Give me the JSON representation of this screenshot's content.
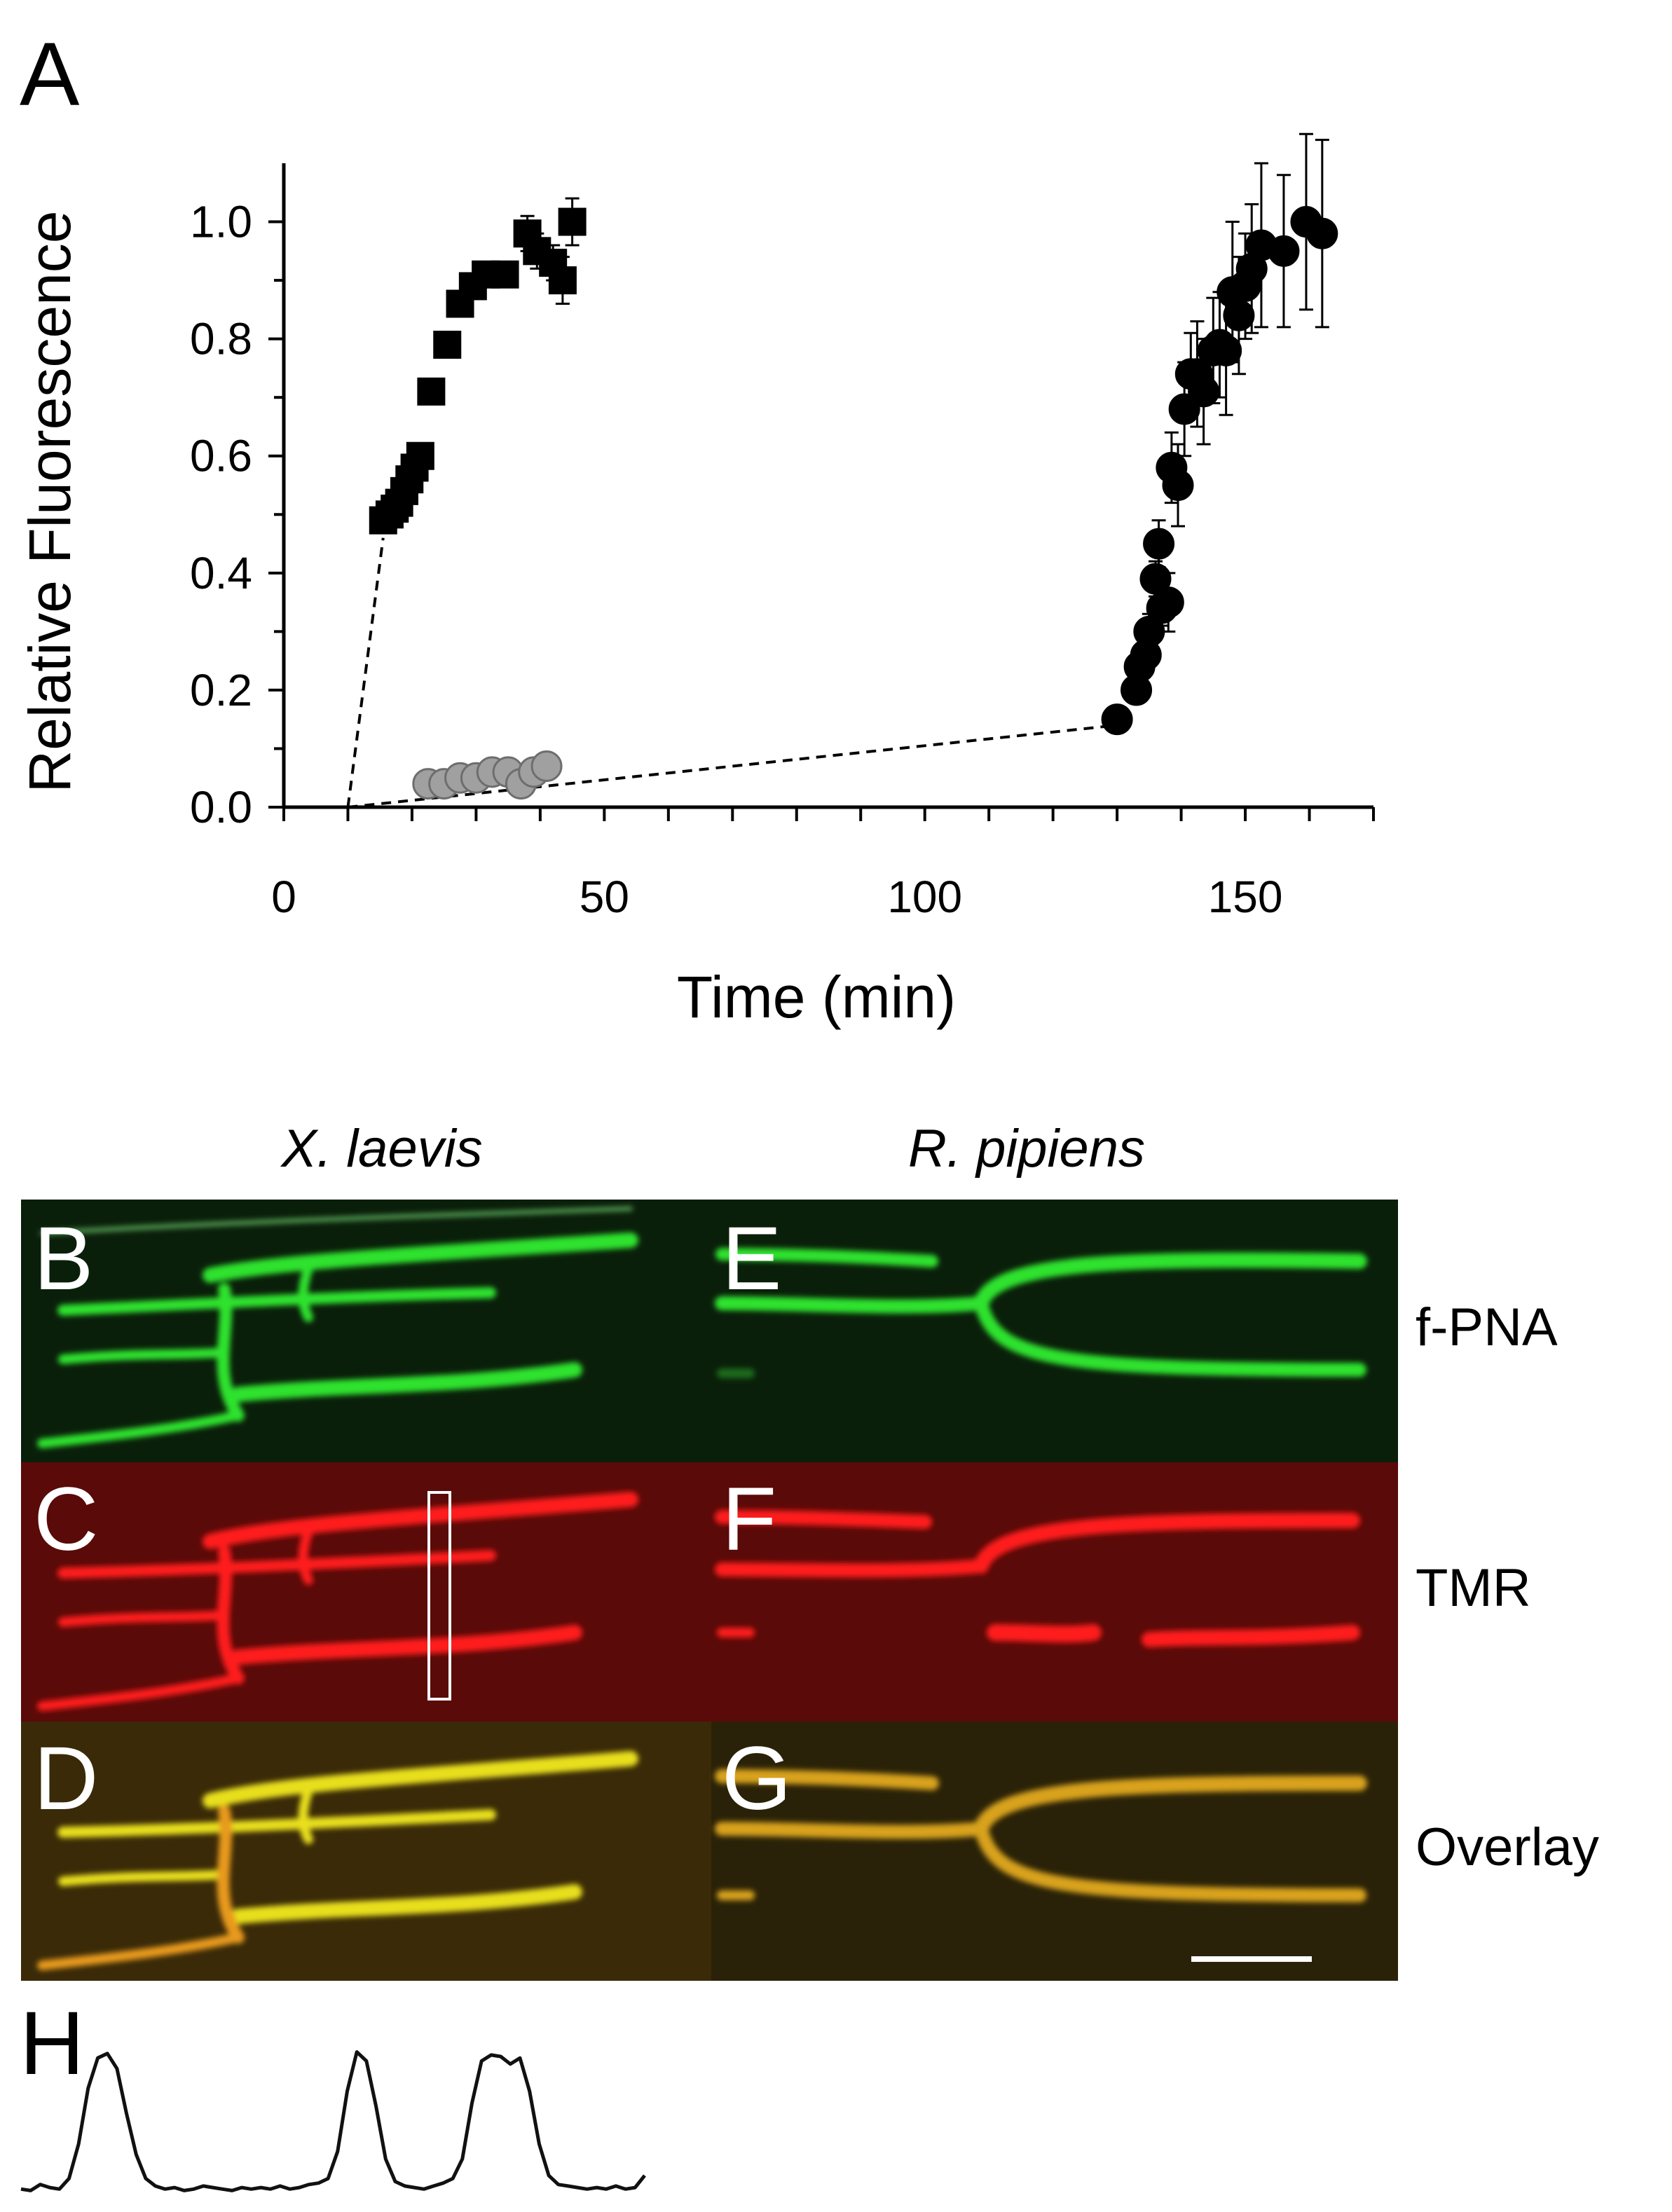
{
  "panels": {
    "A": "A",
    "B": "B",
    "C": "C",
    "D": "D",
    "E": "E",
    "F": "F",
    "G": "G",
    "H": "H"
  },
  "species": {
    "left": "X. laevis",
    "right": "R. pipiens"
  },
  "channels": [
    "f-PNA",
    "TMR",
    "Overlay"
  ],
  "colors": {
    "fpna_green": "#2fe22f",
    "tmr_red": "#ff1e1e",
    "overlay_yellow": "#e8df1c",
    "gray_markers": "#a0a0a0"
  },
  "chart_data": {
    "type": "scatter",
    "xlabel": "Time (min)",
    "ylabel": "Relative Fluorescence",
    "xlim": [
      0,
      170
    ],
    "ylim": [
      0,
      1.1
    ],
    "xticks": [
      "0",
      "50",
      "100",
      "150"
    ],
    "yticks": [
      "0.0",
      "0.2",
      "0.4",
      "0.6",
      "0.8",
      "1.0"
    ],
    "series": [
      {
        "marker": "square",
        "color": "#000000",
        "x": [
          15.5,
          16.5,
          17.3,
          18,
          18.8,
          19.6,
          20.4,
          21.3,
          23,
          25.5,
          27.5,
          29.5,
          31.5,
          34.5,
          38,
          39.5,
          42,
          43.5,
          45
        ],
        "y": [
          0.49,
          0.5,
          0.51,
          0.52,
          0.54,
          0.56,
          0.58,
          0.6,
          0.71,
          0.79,
          0.86,
          0.89,
          0.91,
          0.91,
          0.98,
          0.95,
          0.93,
          0.9,
          1.0
        ],
        "err": [
          0.01,
          0.01,
          0.01,
          0.02,
          0.02,
          0.02,
          0.02,
          0.02,
          0.02,
          0.02,
          0.02,
          0.02,
          0.02,
          0.01,
          0.03,
          0.03,
          0.03,
          0.04,
          0.04
        ]
      },
      {
        "marker": "circle",
        "color": "#a0a0a0",
        "x": [
          22.5,
          25,
          27.5,
          30,
          32.5,
          35,
          37,
          39,
          41
        ],
        "y": [
          0.04,
          0.04,
          0.05,
          0.05,
          0.06,
          0.06,
          0.04,
          0.06,
          0.07
        ],
        "err": []
      },
      {
        "marker": "circle",
        "color": "#000000",
        "x": [
          130,
          133,
          133.5,
          134.5,
          135,
          136,
          136.5,
          137,
          138,
          138.5,
          139.5,
          140.5,
          141.5,
          142.5,
          143.5,
          145,
          146,
          147,
          148,
          149,
          150,
          151,
          152.5,
          156,
          159.5,
          162
        ],
        "y": [
          0.15,
          0.2,
          0.24,
          0.26,
          0.3,
          0.39,
          0.45,
          0.34,
          0.35,
          0.58,
          0.55,
          0.68,
          0.74,
          0.74,
          0.71,
          0.78,
          0.79,
          0.78,
          0.88,
          0.84,
          0.89,
          0.92,
          0.96,
          0.95,
          1.0,
          0.98
        ],
        "err": [
          0.01,
          0.02,
          0.03,
          0.02,
          0.03,
          0.03,
          0.04,
          0.03,
          0.05,
          0.06,
          0.07,
          0.08,
          0.07,
          0.09,
          0.09,
          0.09,
          0.09,
          0.11,
          0.12,
          0.1,
          0.09,
          0.11,
          0.14,
          0.13,
          0.15,
          0.16
        ]
      }
    ],
    "dashed_lines": [
      {
        "x": [
          10,
          15.5
        ],
        "y": [
          0.0,
          0.46
        ]
      },
      {
        "x": [
          10,
          130
        ],
        "y": [
          0.0,
          0.14
        ]
      }
    ]
  },
  "profile_H": [
    0.05,
    0.04,
    0.08,
    0.06,
    0.05,
    0.12,
    0.35,
    0.72,
    0.92,
    0.95,
    0.85,
    0.55,
    0.28,
    0.12,
    0.07,
    0.05,
    0.06,
    0.04,
    0.05,
    0.07,
    0.06,
    0.05,
    0.04,
    0.06,
    0.05,
    0.06,
    0.05,
    0.07,
    0.05,
    0.06,
    0.08,
    0.09,
    0.12,
    0.3,
    0.7,
    0.96,
    0.9,
    0.6,
    0.25,
    0.1,
    0.07,
    0.06,
    0.05,
    0.07,
    0.09,
    0.12,
    0.25,
    0.62,
    0.9,
    0.94,
    0.93,
    0.88,
    0.92,
    0.7,
    0.35,
    0.14,
    0.08,
    0.07,
    0.06,
    0.05,
    0.06,
    0.05,
    0.07,
    0.05,
    0.06,
    0.14
  ]
}
